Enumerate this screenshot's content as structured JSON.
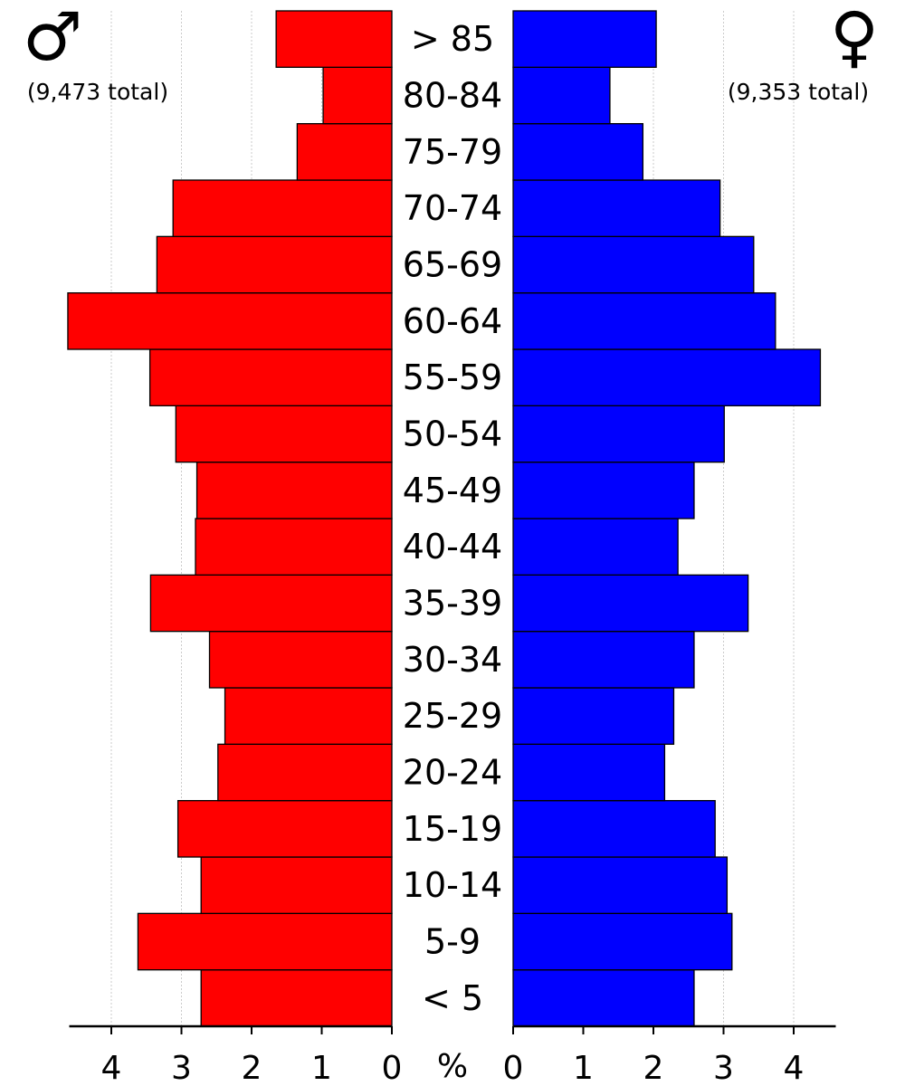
{
  "chart_data": {
    "type": "bar",
    "orientation": "horizontal",
    "layout": "population-pyramid",
    "categories": [
      "< 5",
      "5-9",
      "10-14",
      "15-19",
      "20-24",
      "25-29",
      "30-34",
      "35-39",
      "40-44",
      "45-49",
      "50-54",
      "55-59",
      "60-64",
      "65-69",
      "70-74",
      "75-79",
      "80-84",
      "> 85"
    ],
    "series": [
      {
        "side": "left",
        "color": "#ff0000",
        "values": [
          2.72,
          3.62,
          2.72,
          3.05,
          2.48,
          2.38,
          2.6,
          3.44,
          2.8,
          2.78,
          3.08,
          3.45,
          4.62,
          3.35,
          3.12,
          1.35,
          0.98,
          1.65
        ]
      },
      {
        "side": "right",
        "color": "#0000ff",
        "values": [
          2.58,
          3.12,
          3.05,
          2.88,
          2.16,
          2.29,
          2.58,
          3.35,
          2.35,
          2.58,
          3.01,
          4.38,
          3.74,
          3.43,
          2.95,
          1.85,
          1.38,
          2.04
        ]
      }
    ],
    "male_symbol": "♂",
    "female_symbol": "♀",
    "male_total": "(9,473 total)",
    "female_total": "(9,353 total)",
    "unit_label": "%",
    "xlim": [
      0,
      4.6
    ],
    "xticks": [
      0,
      1,
      2,
      3,
      4
    ],
    "xtick_labels": [
      "0",
      "1",
      "2",
      "3",
      "4"
    ],
    "grid": "vertical dashed"
  }
}
